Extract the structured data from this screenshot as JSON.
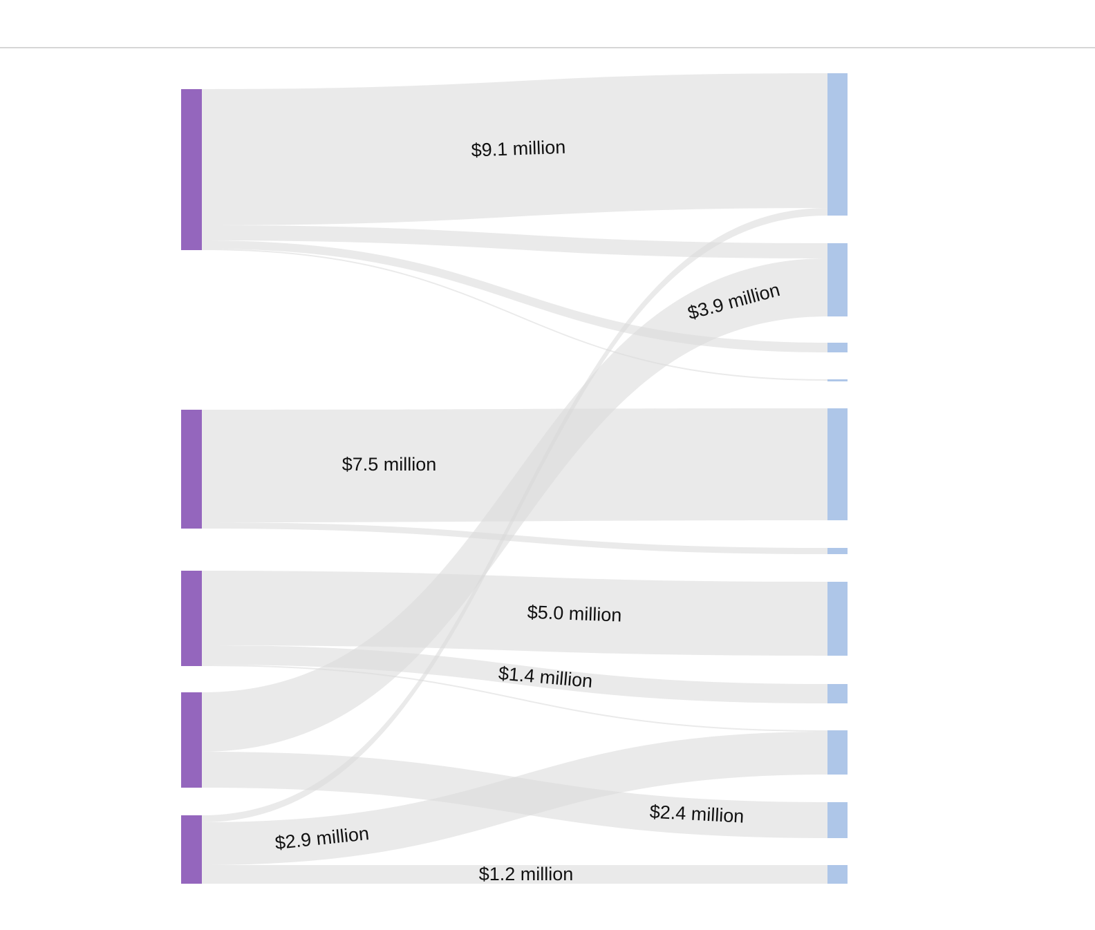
{
  "colors": {
    "source_node": "#9466bd",
    "target_node": "#aec6e8",
    "link": "#d9d9d9",
    "label": "#111111"
  },
  "flow_labels": {
    "l1": "$9.1 million",
    "l2": "$3.9 million",
    "l3": "$7.5 million",
    "l4": "$5.0 million",
    "l5": "$1.4 million",
    "l6": "$2.4 million",
    "l7": "$2.9 million",
    "l8": "$1.2 million"
  }
}
